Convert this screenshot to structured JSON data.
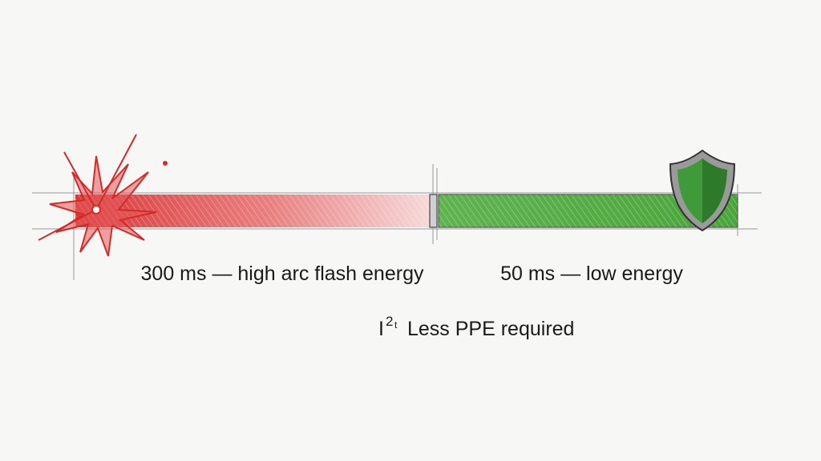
{
  "labels": {
    "slow": "300 ms — high arc flash energy",
    "fast": "50 ms — low energy"
  },
  "note": {
    "symbol": "I",
    "exponent": "2",
    "index": "t",
    "text": "Less PPE required"
  }
}
